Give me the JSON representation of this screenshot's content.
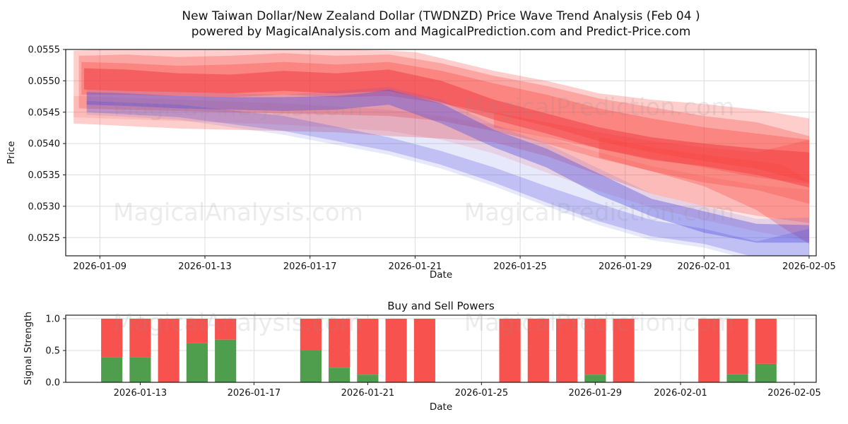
{
  "figure": {
    "title_line1": "New Taiwan Dollar/New Zealand Dollar (TWDNZD) Price Wave Trend Analysis (Feb 04 )",
    "title_line2": "powered by MagicalAnalysis.com and MagicalPrediction.com and Predict-Price.com",
    "watermark_left": "MagicalAnalysis.com",
    "watermark_right": "MagicalPrediction.com"
  },
  "chart_data": [
    {
      "type": "area",
      "name": "price-wave-trend",
      "xlabel": "Date",
      "ylabel": "Price",
      "day_reference": "d = days since 2026-01-08",
      "xlim_days": [
        -0.3,
        28.27
      ],
      "ylim": [
        0.05221,
        0.0555
      ],
      "grid": true,
      "xticks": [
        {
          "label": "2026-01-09",
          "d": 1
        },
        {
          "label": "2026-01-13",
          "d": 5
        },
        {
          "label": "2026-01-17",
          "d": 9
        },
        {
          "label": "2026-01-21",
          "d": 13
        },
        {
          "label": "2026-01-25",
          "d": 17
        },
        {
          "label": "2026-01-29",
          "d": 21
        },
        {
          "label": "2026-02-01",
          "d": 24
        },
        {
          "label": "2026-02-05",
          "d": 28
        }
      ],
      "yticks": [
        {
          "label": "0.0555",
          "v": 0.0555
        },
        {
          "label": "0.0550",
          "v": 0.055
        },
        {
          "label": "0.0545",
          "v": 0.0545
        },
        {
          "label": "0.0540",
          "v": 0.054
        },
        {
          "label": "0.0535",
          "v": 0.0535
        },
        {
          "label": "0.0530",
          "v": 0.053
        },
        {
          "label": "0.0525",
          "v": 0.0525
        }
      ],
      "bands": [
        {
          "name": "red-wave-outer",
          "color": "#f8413a",
          "opacity": 0.26,
          "d": [
            0,
            2,
            4,
            6,
            8,
            10,
            12,
            13,
            14,
            16,
            18,
            20,
            22,
            24,
            26,
            28
          ],
          "top": [
            0.05548,
            0.05552,
            0.05552,
            0.0555,
            0.05552,
            0.0555,
            0.05548,
            0.05546,
            0.05536,
            0.05516,
            0.055,
            0.0548,
            0.0547,
            0.05463,
            0.05454,
            0.0544
          ],
          "bottom": [
            0.05432,
            0.05428,
            0.05424,
            0.05422,
            0.0542,
            0.05418,
            0.05412,
            0.0541,
            0.05408,
            0.05402,
            0.0538,
            0.0535,
            0.0532,
            0.053,
            0.05285,
            0.05273
          ]
        },
        {
          "name": "red-wave-2",
          "color": "#f8413a",
          "opacity": 0.28,
          "d": [
            0.2,
            2,
            4,
            6,
            8,
            10,
            12,
            14,
            16,
            18,
            20,
            22,
            24,
            26,
            28
          ],
          "top": [
            0.0554,
            0.05542,
            0.05538,
            0.0554,
            0.05544,
            0.0554,
            0.05542,
            0.05528,
            0.05508,
            0.05492,
            0.05472,
            0.05458,
            0.05444,
            0.05434,
            0.05412
          ],
          "bottom": [
            0.05456,
            0.05454,
            0.05452,
            0.0545,
            0.05448,
            0.05446,
            0.05444,
            0.05436,
            0.0542,
            0.054,
            0.05376,
            0.05356,
            0.05338,
            0.05326,
            0.05304
          ]
        },
        {
          "name": "red-wave-3",
          "color": "#f8413a",
          "opacity": 0.32,
          "d": [
            0.3,
            2,
            4,
            6,
            8,
            10,
            12,
            14,
            16,
            18,
            20,
            22,
            24,
            26,
            28
          ],
          "top": [
            0.0553,
            0.05528,
            0.05524,
            0.05526,
            0.0553,
            0.05526,
            0.0553,
            0.05516,
            0.05496,
            0.05478,
            0.05456,
            0.0544,
            0.05426,
            0.05416,
            0.05406
          ],
          "bottom": [
            0.05478,
            0.05478,
            0.05476,
            0.05474,
            0.05478,
            0.05474,
            0.05476,
            0.05464,
            0.05448,
            0.05428,
            0.05404,
            0.05386,
            0.05372,
            0.0536,
            0.05338
          ]
        },
        {
          "name": "red-wave-core",
          "color": "#ef2633",
          "opacity": 0.4,
          "d": [
            0.4,
            2,
            4,
            6,
            8,
            10,
            12,
            14,
            16,
            18,
            20,
            22,
            24,
            26,
            28
          ],
          "top": [
            0.0552,
            0.05518,
            0.05512,
            0.0551,
            0.05516,
            0.05512,
            0.05518,
            0.055,
            0.0547,
            0.05448,
            0.05426,
            0.0541,
            0.054,
            0.05392,
            0.05386
          ],
          "bottom": [
            0.05486,
            0.05484,
            0.05482,
            0.0548,
            0.05484,
            0.0548,
            0.05484,
            0.05466,
            0.05438,
            0.05416,
            0.05392,
            0.05374,
            0.05364,
            0.0535,
            0.0533
          ]
        },
        {
          "name": "red-wave-pale-lower",
          "color": "#f8413a",
          "opacity": 0.13,
          "d": [
            0,
            4,
            8,
            12,
            14,
            16,
            18,
            20,
            22,
            24,
            26,
            28
          ],
          "top": [
            0.05476,
            0.0547,
            0.05464,
            0.05454,
            0.05444,
            0.0543,
            0.0541,
            0.05386,
            0.05364,
            0.05348,
            0.05334,
            0.05326
          ],
          "bottom": [
            0.05442,
            0.05436,
            0.0543,
            0.0542,
            0.05406,
            0.05384,
            0.05354,
            0.05324,
            0.05298,
            0.05278,
            0.0526,
            0.05244
          ]
        },
        {
          "name": "red-wave-end-drop",
          "color": "#f8413a",
          "opacity": 0.3,
          "d": [
            20,
            22,
            24,
            26,
            27,
            28
          ],
          "top": [
            0.0541,
            0.05394,
            0.05382,
            0.05372,
            0.05366,
            0.0534
          ],
          "bottom": [
            0.05378,
            0.05356,
            0.05332,
            0.05294,
            0.05266,
            0.0524
          ]
        },
        {
          "name": "red-wave-end-band",
          "color": "#f8413a",
          "opacity": 0.28,
          "d": [
            16,
            18,
            20,
            22,
            24,
            26,
            28
          ],
          "top": [
            0.0545,
            0.05434,
            0.05418,
            0.05404,
            0.05394,
            0.05386,
            0.05406
          ],
          "bottom": [
            0.05426,
            0.0541,
            0.05392,
            0.05376,
            0.05362,
            0.05346,
            0.05336
          ]
        },
        {
          "name": "blue-wave-upper",
          "color": "#4b4bdf",
          "opacity": 0.38,
          "d": [
            0.5,
            2,
            4,
            6,
            8,
            10,
            11,
            12,
            14,
            16,
            18,
            20,
            22,
            24,
            26,
            28
          ],
          "top": [
            0.05482,
            0.0548,
            0.05476,
            0.05474,
            0.05474,
            0.05476,
            0.0548,
            0.05486,
            0.05464,
            0.05422,
            0.05392,
            0.05352,
            0.05312,
            0.05292,
            0.05272,
            0.0527
          ],
          "bottom": [
            0.05462,
            0.0546,
            0.05456,
            0.05454,
            0.05452,
            0.05454,
            0.05458,
            0.05462,
            0.05432,
            0.05394,
            0.05362,
            0.05318,
            0.05284,
            0.05258,
            0.05242,
            0.05242
          ]
        },
        {
          "name": "blue-wave-lower",
          "color": "#4b4bdf",
          "opacity": 0.25,
          "d": [
            0.5,
            4,
            8,
            12,
            14,
            16,
            18,
            20,
            22,
            24,
            26,
            28
          ],
          "top": [
            0.05468,
            0.05462,
            0.05444,
            0.0541,
            0.05388,
            0.05362,
            0.05332,
            0.05304,
            0.05278,
            0.05264,
            0.05244,
            0.05264
          ],
          "bottom": [
            0.0545,
            0.05442,
            0.0542,
            0.05388,
            0.05366,
            0.05338,
            0.05306,
            0.05276,
            0.05252,
            0.0524,
            0.05218,
            0.05214
          ]
        },
        {
          "name": "blue-wave-faint",
          "color": "#4b4bdf",
          "opacity": 0.13,
          "d": [
            0.5,
            4,
            8,
            12,
            14,
            16,
            18,
            20,
            22,
            24,
            26,
            28
          ],
          "top": [
            0.05486,
            0.05482,
            0.05478,
            0.0549,
            0.0547,
            0.0543,
            0.054,
            0.0536,
            0.0532,
            0.053,
            0.0528,
            0.05282
          ],
          "bottom": [
            0.05446,
            0.05438,
            0.05414,
            0.05382,
            0.0536,
            0.05332,
            0.053,
            0.0527,
            0.05246,
            0.05234,
            0.05212,
            0.05208
          ]
        }
      ]
    },
    {
      "type": "bar",
      "name": "buy-sell-powers",
      "title": "Buy and Sell Powers",
      "xlabel": "Date",
      "ylabel": "Signal Strength",
      "day_reference": "d = days since 2026-01-08",
      "xlim_days": [
        2.38,
        28.77
      ],
      "ylim": [
        0,
        1.0556
      ],
      "grid": true,
      "bar_width_days": 0.75,
      "colors": {
        "buy": "#4f9e4e",
        "sell": "#f8524e"
      },
      "xticks": [
        {
          "label": "2026-01-13",
          "d": 5
        },
        {
          "label": "2026-01-17",
          "d": 9
        },
        {
          "label": "2026-01-21",
          "d": 13
        },
        {
          "label": "2026-01-25",
          "d": 17
        },
        {
          "label": "2026-01-29",
          "d": 21
        },
        {
          "label": "2026-02-01",
          "d": 24
        },
        {
          "label": "2026-02-05",
          "d": 28
        }
      ],
      "yticks": [
        {
          "label": "0.0",
          "v": 0.0
        },
        {
          "label": "0.5",
          "v": 0.5
        },
        {
          "label": "1.0",
          "v": 1.0
        }
      ],
      "bars": [
        {
          "date": "2026-01-12",
          "d": 4,
          "buy": 0.39,
          "sell": 0.61
        },
        {
          "date": "2026-01-13",
          "d": 5,
          "buy": 0.39,
          "sell": 0.61
        },
        {
          "date": "2026-01-14",
          "d": 6,
          "buy": 0.0,
          "sell": 1.0
        },
        {
          "date": "2026-01-15",
          "d": 7,
          "buy": 0.62,
          "sell": 0.38
        },
        {
          "date": "2026-01-16",
          "d": 8,
          "buy": 0.67,
          "sell": 0.33
        },
        {
          "date": "2026-01-19",
          "d": 11,
          "buy": 0.5,
          "sell": 0.5
        },
        {
          "date": "2026-01-20",
          "d": 12,
          "buy": 0.23,
          "sell": 0.77
        },
        {
          "date": "2026-01-21",
          "d": 13,
          "buy": 0.12,
          "sell": 0.88
        },
        {
          "date": "2026-01-22",
          "d": 14,
          "buy": 0.0,
          "sell": 1.0
        },
        {
          "date": "2026-01-23",
          "d": 15,
          "buy": 0.0,
          "sell": 1.0
        },
        {
          "date": "2026-01-26",
          "d": 18,
          "buy": 0.0,
          "sell": 1.0
        },
        {
          "date": "2026-01-27",
          "d": 19,
          "buy": 0.0,
          "sell": 1.0
        },
        {
          "date": "2026-01-28",
          "d": 20,
          "buy": 0.0,
          "sell": 1.0
        },
        {
          "date": "2026-01-29",
          "d": 21,
          "buy": 0.12,
          "sell": 0.88
        },
        {
          "date": "2026-01-30",
          "d": 22,
          "buy": 0.0,
          "sell": 1.0
        },
        {
          "date": "2026-02-02",
          "d": 25,
          "buy": 0.0,
          "sell": 1.0
        },
        {
          "date": "2026-02-03",
          "d": 26,
          "buy": 0.13,
          "sell": 0.87
        },
        {
          "date": "2026-02-04",
          "d": 27,
          "buy": 0.29,
          "sell": 0.71
        }
      ]
    }
  ]
}
